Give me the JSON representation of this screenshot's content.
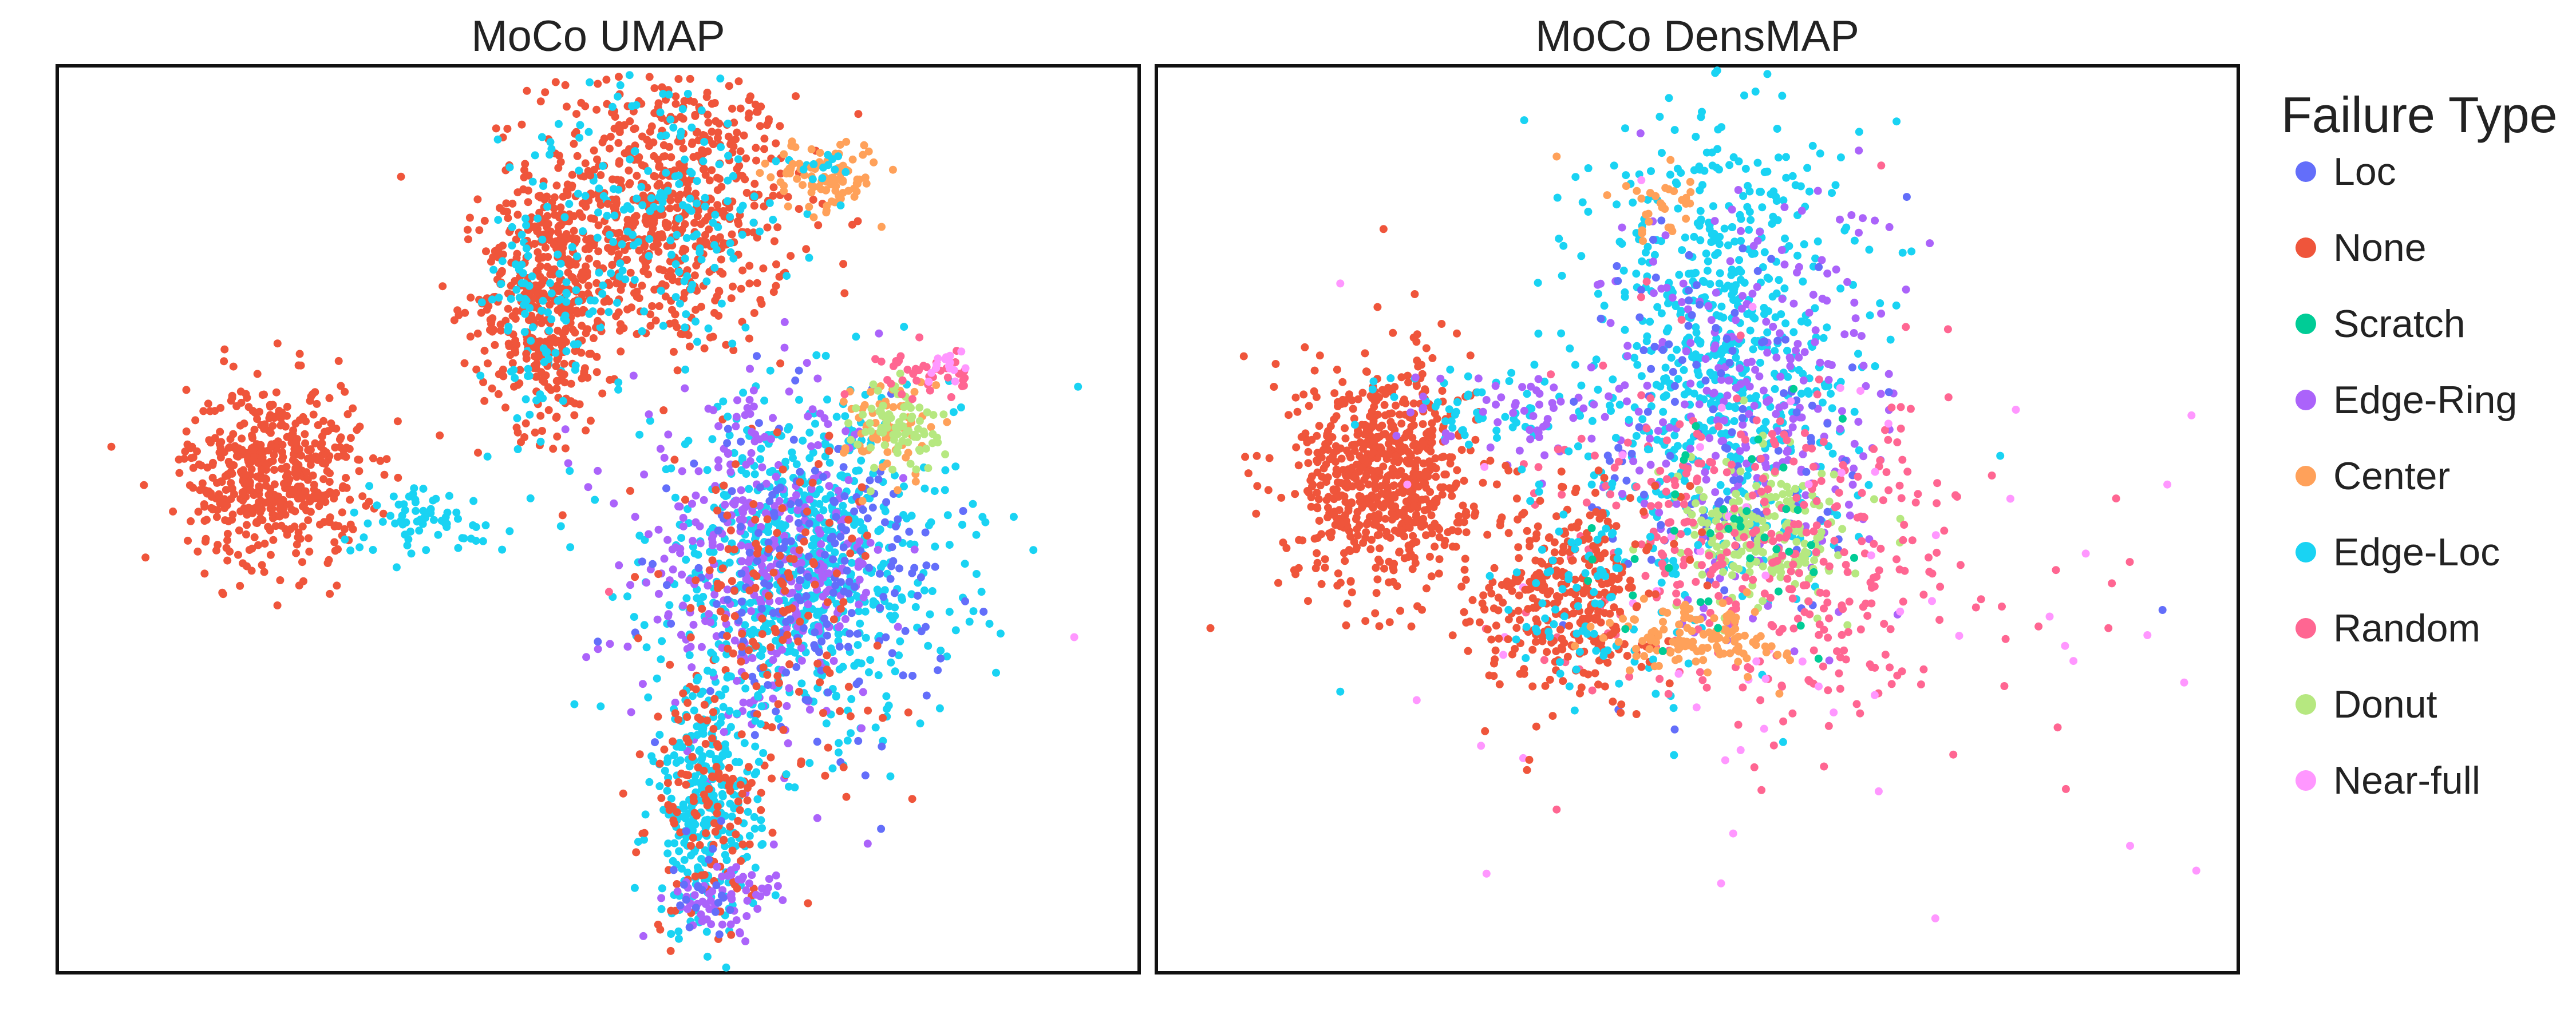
{
  "legend": {
    "title": "Failure Type",
    "items": [
      {
        "label": "Loc",
        "color": "#636efa"
      },
      {
        "label": "None",
        "color": "#ef553b"
      },
      {
        "label": "Scratch",
        "color": "#00cc96"
      },
      {
        "label": "Edge-Ring",
        "color": "#ab63fa"
      },
      {
        "label": "Center",
        "color": "#ffa15a"
      },
      {
        "label": "Edge-Loc",
        "color": "#19d3f3"
      },
      {
        "label": "Random",
        "color": "#ff6692"
      },
      {
        "label": "Donut",
        "color": "#b6e880"
      },
      {
        "label": "Near-full",
        "color": "#ff97ff"
      }
    ]
  },
  "chart_data": [
    {
      "type": "scatter",
      "title": "MoCo UMAP",
      "xlabel": "",
      "ylabel": "",
      "xlim": [
        0,
        100
      ],
      "ylim": [
        0,
        100
      ],
      "grid": false,
      "legend_position": "right",
      "clusters": [
        {
          "series": "None",
          "cx": 56,
          "cy": 84,
          "sx": 6,
          "sy": 8,
          "n": 700
        },
        {
          "series": "Edge-Loc",
          "cx": 56,
          "cy": 84,
          "sx": 6,
          "sy": 8,
          "n": 170
        },
        {
          "series": "None",
          "cx": 45,
          "cy": 74,
          "sx": 3,
          "sy": 7,
          "n": 400
        },
        {
          "series": "Edge-Loc",
          "cx": 45,
          "cy": 74,
          "sx": 3,
          "sy": 7,
          "n": 110
        },
        {
          "series": "Center",
          "cx": 71,
          "cy": 88,
          "sx": 2.5,
          "sy": 2,
          "n": 100
        },
        {
          "series": "Edge-Loc",
          "cx": 71,
          "cy": 88,
          "sx": 1.5,
          "sy": 1.5,
          "n": 12
        },
        {
          "series": "None",
          "cx": 20,
          "cy": 55,
          "sx": 4,
          "sy": 5,
          "n": 520
        },
        {
          "series": "Edge-Loc",
          "cx": 34,
          "cy": 50,
          "sx": 4,
          "sy": 2,
          "n": 70
        },
        {
          "series": "Edge-Loc",
          "cx": 69,
          "cy": 45,
          "sx": 7,
          "sy": 9,
          "n": 700
        },
        {
          "series": "Edge-Ring",
          "cx": 65,
          "cy": 45,
          "sx": 6,
          "sy": 9,
          "n": 350
        },
        {
          "series": "Loc",
          "cx": 70,
          "cy": 44,
          "sx": 6,
          "sy": 8,
          "n": 200
        },
        {
          "series": "None",
          "cx": 66,
          "cy": 40,
          "sx": 5,
          "sy": 10,
          "n": 150
        },
        {
          "series": "Center",
          "cx": 77,
          "cy": 60,
          "sx": 2,
          "sy": 3,
          "n": 70
        },
        {
          "series": "Donut",
          "cx": 78,
          "cy": 60,
          "sx": 2,
          "sy": 2.5,
          "n": 80
        },
        {
          "series": "Random",
          "cx": 80,
          "cy": 66,
          "sx": 2,
          "sy": 1.5,
          "n": 40
        },
        {
          "series": "Near-full",
          "cx": 82,
          "cy": 67,
          "sx": 1,
          "sy": 1,
          "n": 15
        },
        {
          "series": "Edge-Loc",
          "cx": 60,
          "cy": 18,
          "sx": 2.5,
          "sy": 7,
          "n": 300
        },
        {
          "series": "None",
          "cx": 60,
          "cy": 18,
          "sx": 2.5,
          "sy": 7,
          "n": 120
        },
        {
          "series": "Edge-Ring",
          "cx": 62,
          "cy": 8,
          "sx": 3,
          "sy": 2,
          "n": 60
        },
        {
          "series": "Loc",
          "cx": 60,
          "cy": 10,
          "sx": 2,
          "sy": 4,
          "n": 20
        }
      ],
      "outliers": [
        {
          "series": "None",
          "x": 5,
          "y": 58
        },
        {
          "series": "Near-full",
          "x": 94,
          "y": 37
        },
        {
          "series": "Random",
          "x": 51,
          "y": 42
        }
      ]
    },
    {
      "type": "scatter",
      "title": "MoCo DensMAP",
      "xlabel": "",
      "ylabel": "",
      "xlim": [
        0,
        100
      ],
      "ylim": [
        0,
        100
      ],
      "grid": false,
      "legend_position": "right",
      "clusters": [
        {
          "series": "None",
          "cx": 21,
          "cy": 55,
          "sx": 4,
          "sy": 6,
          "n": 700
        },
        {
          "series": "Edge-Loc",
          "cx": 32,
          "cy": 62,
          "sx": 5,
          "sy": 3,
          "n": 60
        },
        {
          "series": "Edge-Ring",
          "cx": 33,
          "cy": 61,
          "sx": 5,
          "sy": 3,
          "n": 50
        },
        {
          "series": "Edge-Loc",
          "cx": 52,
          "cy": 70,
          "sx": 6,
          "sy": 13,
          "n": 650
        },
        {
          "series": "Edge-Ring",
          "cx": 55,
          "cy": 62,
          "sx": 7,
          "sy": 12,
          "n": 280
        },
        {
          "series": "Loc",
          "cx": 53,
          "cy": 60,
          "sx": 7,
          "sy": 12,
          "n": 120
        },
        {
          "series": "Donut",
          "cx": 56,
          "cy": 48,
          "sx": 4,
          "sy": 4,
          "n": 200
        },
        {
          "series": "Random",
          "cx": 57,
          "cy": 46,
          "sx": 10,
          "sy": 9,
          "n": 380
        },
        {
          "series": "Near-full",
          "cx": 60,
          "cy": 40,
          "sx": 18,
          "sy": 16,
          "n": 60
        },
        {
          "series": "None",
          "cx": 38,
          "cy": 42,
          "sx": 4,
          "sy": 6,
          "n": 350
        },
        {
          "series": "Edge-Loc",
          "cx": 40,
          "cy": 42,
          "sx": 4,
          "sy": 6,
          "n": 90
        },
        {
          "series": "Center",
          "cx": 50,
          "cy": 37,
          "sx": 4,
          "sy": 2,
          "n": 120
        },
        {
          "series": "Scratch",
          "cx": 54,
          "cy": 48,
          "sx": 6,
          "sy": 6,
          "n": 40
        },
        {
          "series": "Center",
          "cx": 47,
          "cy": 85,
          "sx": 2,
          "sy": 2,
          "n": 30
        }
      ],
      "outliers": [
        {
          "series": "Edge-Loc",
          "x": 34,
          "y": 94
        },
        {
          "series": "Random",
          "x": 67,
          "y": 89
        },
        {
          "series": "Center",
          "x": 37,
          "y": 90
        },
        {
          "series": "None",
          "x": 21,
          "y": 82
        },
        {
          "series": "Edge-Loc",
          "x": 17,
          "y": 31
        },
        {
          "series": "None",
          "x": 5,
          "y": 38
        },
        {
          "series": "Near-full",
          "x": 17,
          "y": 76
        },
        {
          "series": "Loc",
          "x": 93,
          "y": 40
        },
        {
          "series": "Near-full",
          "x": 95,
          "y": 32
        },
        {
          "series": "Random",
          "x": 88,
          "y": 38
        },
        {
          "series": "Near-full",
          "x": 90,
          "y": 14
        },
        {
          "series": "Near-full",
          "x": 72,
          "y": 6
        },
        {
          "series": "Random",
          "x": 37,
          "y": 18
        },
        {
          "series": "Edge-Loc",
          "x": 78,
          "y": 57
        }
      ]
    }
  ]
}
